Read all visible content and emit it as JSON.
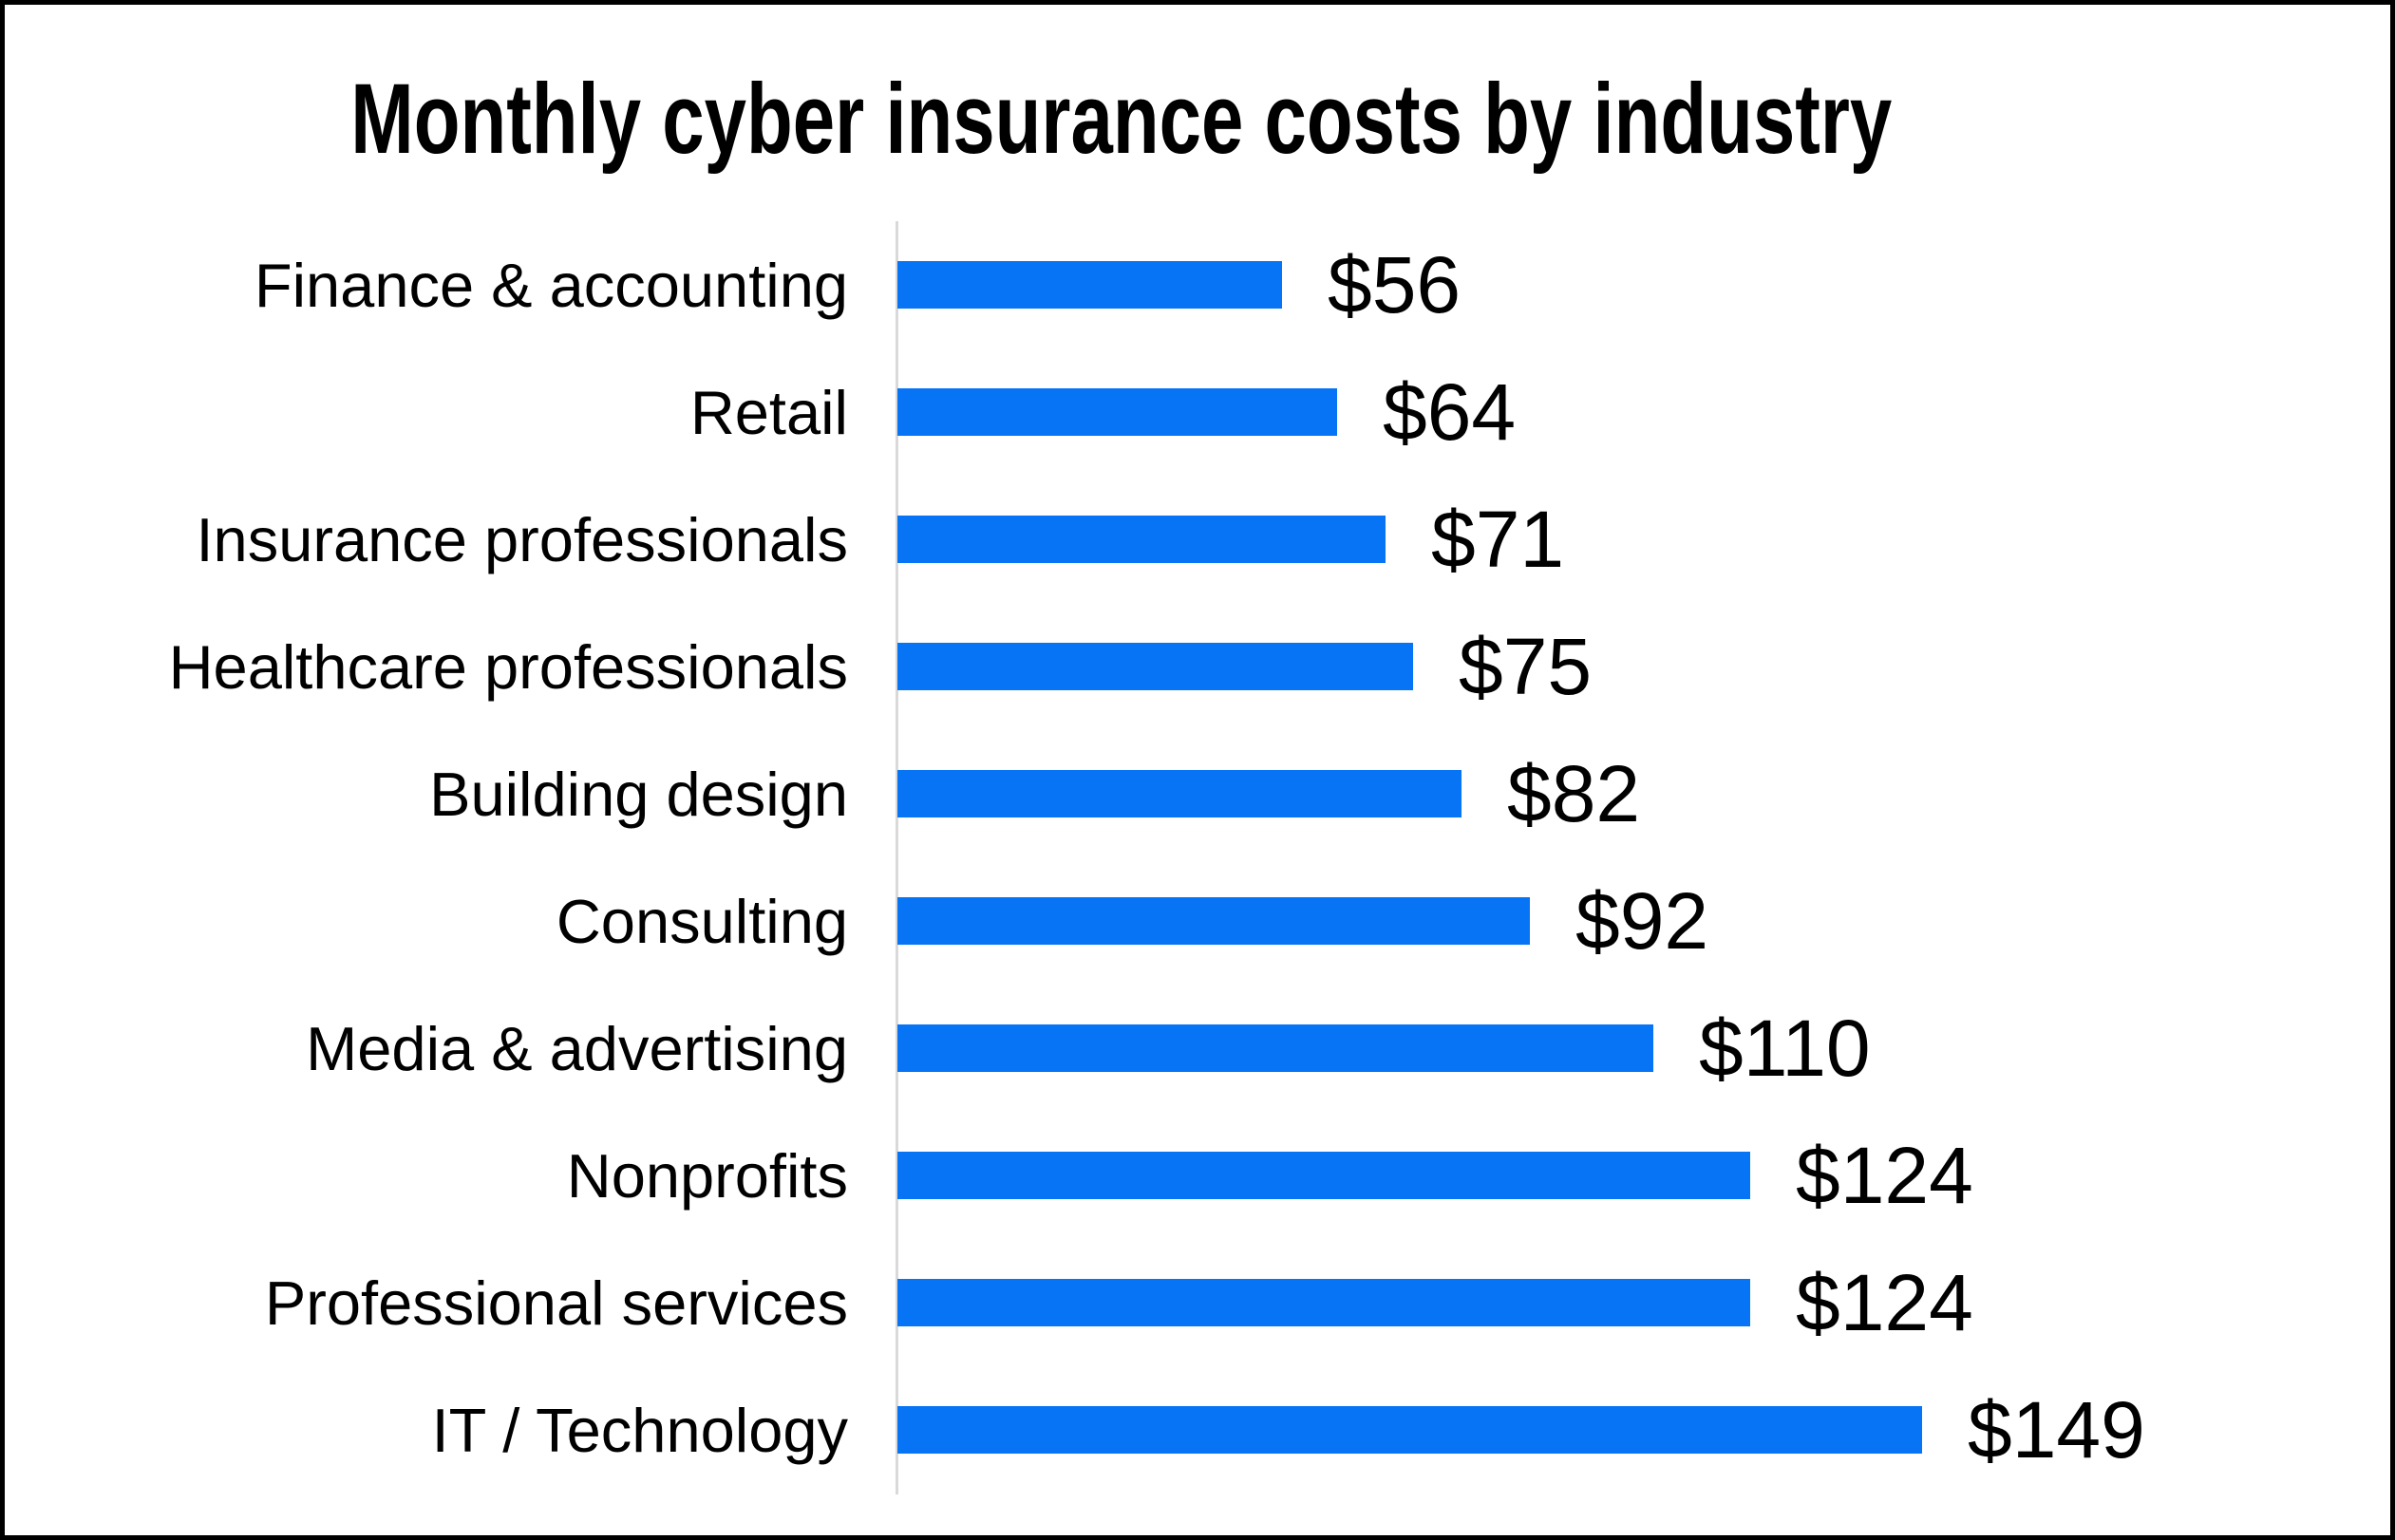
{
  "title": "Monthly cyber insurance costs by industry",
  "chart_data": {
    "type": "bar",
    "orientation": "horizontal",
    "title": "Monthly cyber insurance costs by industry",
    "xlabel": "",
    "ylabel": "",
    "categories": [
      "Finance & accounting",
      "Retail",
      "Insurance professionals",
      "Healthcare professionals",
      "Building design",
      "Consulting",
      "Media & advertising",
      "Nonprofits",
      "Professional services",
      "IT / Technology"
    ],
    "values": [
      56,
      64,
      71,
      75,
      82,
      92,
      110,
      124,
      124,
      149
    ],
    "value_labels": [
      "$56",
      "$64",
      "$71",
      "$75",
      "$82",
      "$92",
      "$110",
      "$124",
      "$124",
      "$149"
    ],
    "unit": "USD per month",
    "xlim": [
      0,
      160
    ],
    "grid": false,
    "legend": false,
    "data_labels_position": "outside-end",
    "bar_color": "#0774F6",
    "axis_line_color": "#D9D9D9",
    "text_color": "#000000",
    "background_color": "#FFFFFF",
    "border_color": "#000000"
  }
}
